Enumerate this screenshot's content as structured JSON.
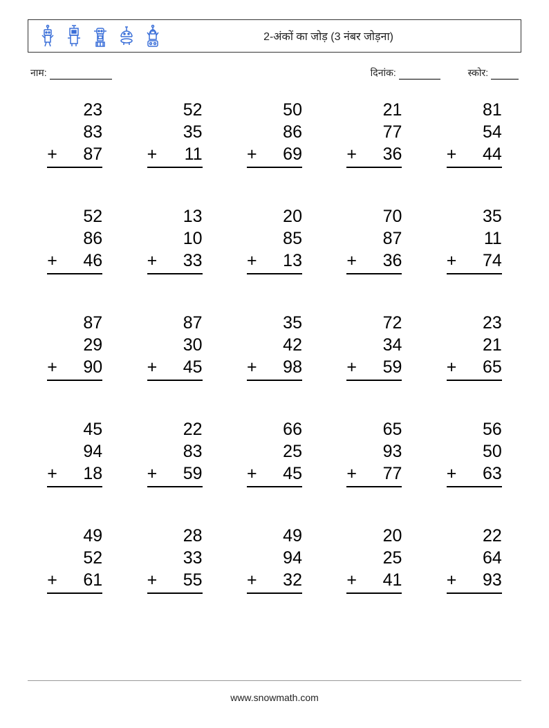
{
  "header": {
    "title": "2-अंकों का जोड़ (3 नंबर जोड़ना)",
    "icon_color": "#3a6fd8"
  },
  "meta": {
    "name_label": "नाम:",
    "date_label": "दिनांक:",
    "score_label": "स्कोर:",
    "name_line_w": 90,
    "date_line_w": 60,
    "score_line_w": 40
  },
  "style": {
    "font_size": 25,
    "text_color": "#000000",
    "bg_color": "#ffffff",
    "grid_cols": 5,
    "grid_rows": 5,
    "row_gap": 54,
    "col_gap": 20
  },
  "problems": [
    [
      23,
      83,
      87
    ],
    [
      52,
      35,
      11
    ],
    [
      50,
      86,
      69
    ],
    [
      21,
      77,
      36
    ],
    [
      81,
      54,
      44
    ],
    [
      52,
      86,
      46
    ],
    [
      13,
      10,
      33
    ],
    [
      20,
      85,
      13
    ],
    [
      70,
      87,
      36
    ],
    [
      35,
      11,
      74
    ],
    [
      87,
      29,
      90
    ],
    [
      87,
      30,
      45
    ],
    [
      35,
      42,
      98
    ],
    [
      72,
      34,
      59
    ],
    [
      23,
      21,
      65
    ],
    [
      45,
      94,
      18
    ],
    [
      22,
      83,
      59
    ],
    [
      66,
      25,
      45
    ],
    [
      65,
      93,
      77
    ],
    [
      56,
      50,
      63
    ],
    [
      49,
      52,
      61
    ],
    [
      28,
      33,
      55
    ],
    [
      49,
      94,
      32
    ],
    [
      20,
      25,
      41
    ],
    [
      22,
      64,
      93
    ]
  ],
  "footer": "www.snowmath.com"
}
